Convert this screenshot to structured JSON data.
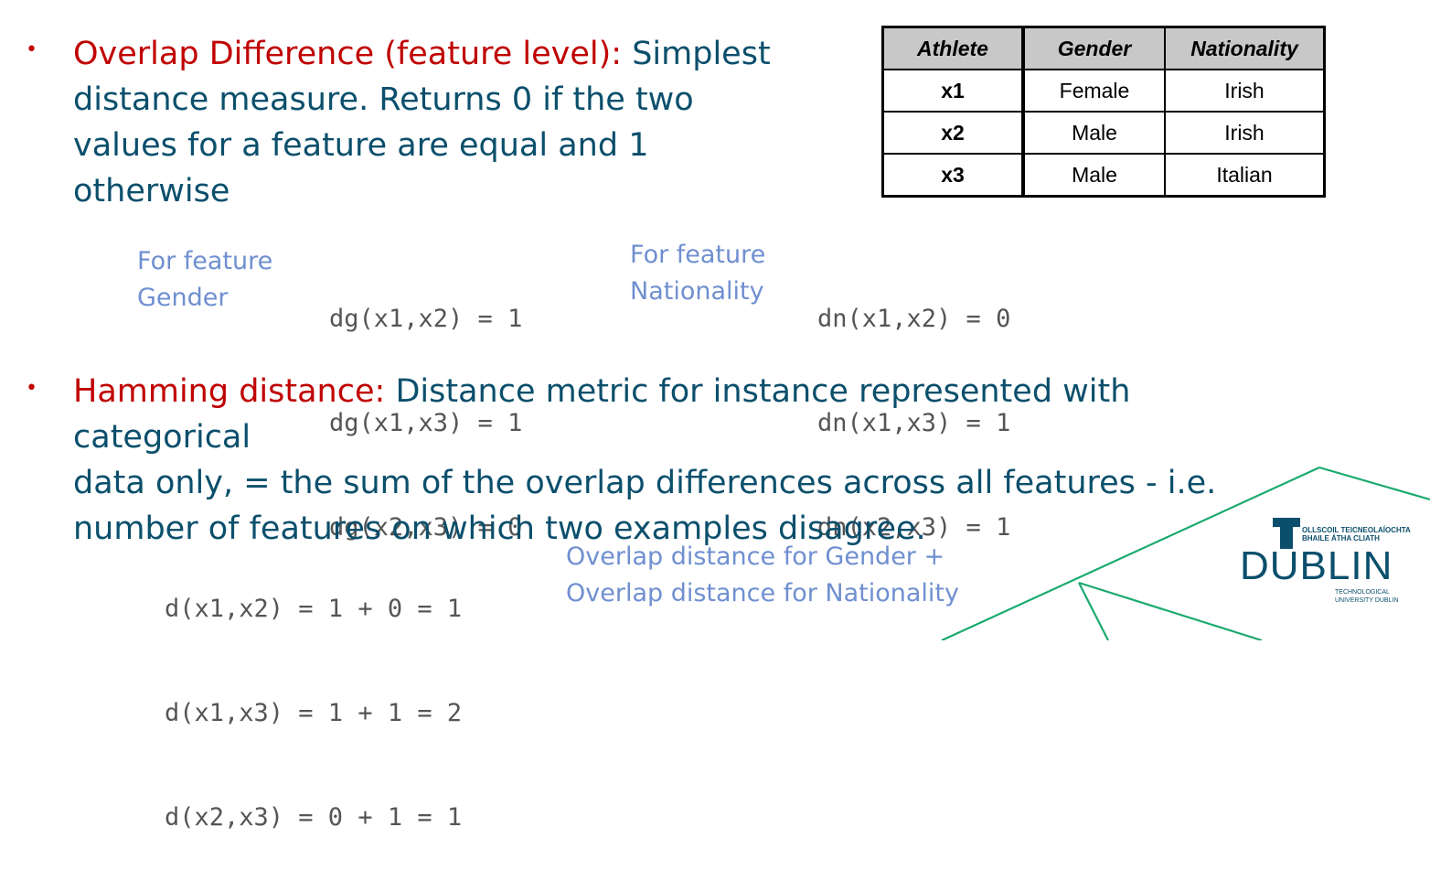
{
  "overlap": {
    "bullet": "•",
    "term": "Overlap Difference (feature level):",
    "lines": [
      " Simplest",
      "distance measure. Returns 0 if the two",
      "values for a feature are equal and 1",
      "otherwise"
    ]
  },
  "gender_block": {
    "label_lines": [
      "For feature",
      "Gender"
    ],
    "formulas": [
      "dg(x1,x2) = 1",
      "dg(x1,x3) = 1",
      "dg(x2,x3) = 0"
    ]
  },
  "nationality_block": {
    "label_lines": [
      "For feature",
      "Nationality"
    ],
    "formulas": [
      "dn(x1,x2) = 0",
      "dn(x1,x3) = 1",
      "dn(x2,x3) = 1"
    ]
  },
  "hamming": {
    "bullet": "•",
    "term": "Hamming distance:",
    "lines": [
      " Distance metric for instance represented with categorical",
      "data only, = the sum of the overlap differences across all features - i.e.",
      "number of features on which two examples disagree."
    ],
    "formulas": [
      "d(x1,x2) = 1 + 0 = 1",
      "d(x1,x3) = 1 + 1 = 2",
      "d(x2,x3) = 0 + 1 = 1"
    ],
    "note_lines": [
      "Overlap distance for Gender +",
      "Overlap distance for Nationality"
    ]
  },
  "table": {
    "headers": [
      "Athlete",
      "Gender",
      "Nationality"
    ],
    "rows": [
      [
        "x1",
        "Female",
        "Irish"
      ],
      [
        "x2",
        "Male",
        "Irish"
      ],
      [
        "x3",
        "Male",
        "Italian"
      ]
    ]
  },
  "logo": {
    "line1": "OLLSCOIL TEICNEOLAÍOCHTA",
    "line2": "BHAILE ÁTHA CLIATH",
    "wordmark": "DUBLIN",
    "line3": "TECHNOLOGICAL",
    "line4": "UNIVERSITY DUBLIN"
  },
  "colors": {
    "term": "#c00000",
    "body": "#0b4f6c",
    "note": "#6f8fd0",
    "code": "#555555",
    "accent_lines": "#1aaa6e"
  }
}
